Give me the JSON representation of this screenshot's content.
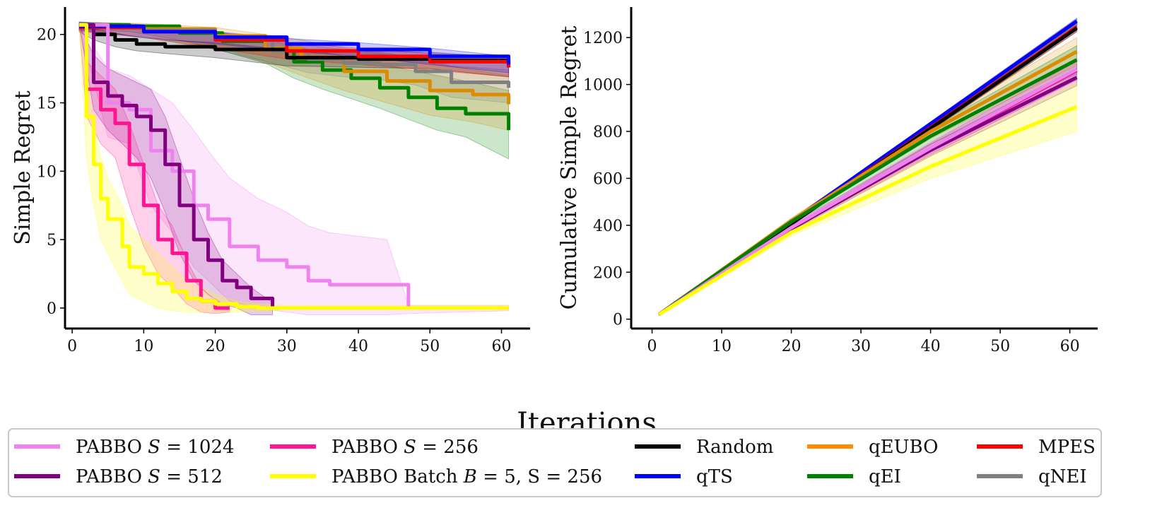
{
  "figure": {
    "shared_xlabel": "Iterations"
  },
  "chart_data": [
    {
      "type": "line",
      "id": "simple-regret",
      "title": "",
      "xlabel": "",
      "ylabel": "Simple Regret",
      "xlim": [
        -1,
        64
      ],
      "ylim": [
        -1.5,
        22
      ],
      "xticks": [
        0,
        10,
        20,
        30,
        40,
        50,
        60
      ],
      "yticks": [
        0,
        5,
        10,
        15,
        20
      ],
      "grid": false,
      "series": [
        {
          "name": "qEI",
          "color": "#008000",
          "x": [
            1,
            8,
            15,
            21,
            27,
            31,
            35,
            39,
            43,
            47,
            51,
            55,
            61
          ],
          "y": [
            20.7,
            20.6,
            20.1,
            19.5,
            18.9,
            18.0,
            17.4,
            16.8,
            16.1,
            15.4,
            14.6,
            14.2,
            13.0
          ],
          "band_hi": [
            20.9,
            20.8,
            20.5,
            20.1,
            19.7,
            19.1,
            18.7,
            18.3,
            17.9,
            17.4,
            17.0,
            16.6,
            15.9
          ],
          "band_lo": [
            20.4,
            20.2,
            19.6,
            18.8,
            17.9,
            16.8,
            16.0,
            15.3,
            14.6,
            13.8,
            13.0,
            12.5,
            10.9
          ]
        },
        {
          "name": "qEUBO",
          "color": "#DB8C00",
          "x": [
            1,
            10,
            20,
            27,
            32,
            38,
            44,
            50,
            56,
            61
          ],
          "y": [
            20.6,
            20.4,
            19.9,
            19.0,
            18.3,
            17.3,
            16.6,
            15.9,
            15.6,
            14.9
          ],
          "band_hi": [
            20.9,
            20.8,
            20.5,
            20.0,
            19.6,
            19.0,
            18.5,
            17.9,
            17.4,
            17.0
          ],
          "band_lo": [
            20.3,
            19.9,
            19.1,
            18.0,
            17.0,
            15.9,
            15.0,
            14.1,
            13.6,
            13.0
          ]
        },
        {
          "name": "qNEI",
          "color": "#808080",
          "x": [
            1,
            10,
            20,
            28,
            33,
            38,
            43,
            48,
            53,
            61
          ],
          "y": [
            20.6,
            20.3,
            19.6,
            18.8,
            18.2,
            17.9,
            17.8,
            17.3,
            16.5,
            16.1
          ],
          "band_hi": [
            20.9,
            20.7,
            20.2,
            19.6,
            19.2,
            18.9,
            18.7,
            18.3,
            17.7,
            17.4
          ],
          "band_lo": [
            20.3,
            19.8,
            18.9,
            17.9,
            17.2,
            16.9,
            16.7,
            16.3,
            15.4,
            15.0
          ]
        },
        {
          "name": "Random",
          "color": "#000000",
          "x": [
            1,
            3,
            6,
            9,
            13,
            20,
            30,
            40,
            50,
            61
          ],
          "y": [
            20.5,
            20.0,
            19.6,
            19.3,
            19.1,
            18.9,
            18.3,
            18.2,
            18.1,
            17.6
          ],
          "band_hi": [
            20.8,
            20.4,
            20.1,
            19.8,
            19.6,
            19.4,
            18.9,
            18.8,
            18.7,
            18.3
          ],
          "band_lo": [
            20.2,
            19.6,
            19.1,
            18.8,
            18.6,
            18.3,
            17.7,
            17.6,
            17.5,
            16.9
          ]
        },
        {
          "name": "MPES",
          "color": "#FF0000",
          "x": [
            1,
            10,
            20,
            30,
            40,
            50,
            61
          ],
          "y": [
            20.5,
            20.2,
            19.6,
            18.8,
            18.4,
            18.0,
            17.6
          ],
          "band_hi": [
            20.8,
            20.6,
            20.1,
            19.4,
            19.0,
            18.6,
            18.3
          ],
          "band_lo": [
            20.2,
            19.8,
            19.0,
            18.2,
            17.8,
            17.4,
            16.9
          ]
        },
        {
          "name": "qTS",
          "color": "#0000FF",
          "x": [
            1,
            10,
            20,
            30,
            40,
            50,
            61
          ],
          "y": [
            20.6,
            20.2,
            19.8,
            19.3,
            18.9,
            18.4,
            17.8
          ],
          "band_hi": [
            20.9,
            20.6,
            20.2,
            19.7,
            19.4,
            19.0,
            18.4
          ],
          "band_lo": [
            20.3,
            19.8,
            19.3,
            18.8,
            18.4,
            17.8,
            17.2
          ]
        },
        {
          "name": "PABBO S = 1024",
          "color": "#EE82EE",
          "x": [
            1,
            5,
            8,
            11,
            14,
            17,
            19,
            22,
            26,
            30,
            33,
            36,
            44,
            47,
            61
          ],
          "y": [
            20.7,
            15.0,
            14.5,
            11.5,
            10.0,
            7.5,
            6.5,
            4.5,
            3.5,
            3.0,
            2.0,
            1.7,
            1.7,
            0.0,
            0.0
          ],
          "band_hi": [
            20.7,
            17.5,
            17.0,
            16.0,
            15.0,
            13.0,
            11.5,
            9.5,
            8.0,
            7.0,
            6.0,
            5.5,
            5.0,
            0.2,
            0.2
          ],
          "band_lo": [
            20.7,
            12.5,
            12.0,
            7.5,
            5.5,
            3.0,
            2.0,
            0.5,
            0.0,
            -0.3,
            -0.5,
            -0.5,
            -0.5,
            -0.4,
            -0.2
          ]
        },
        {
          "name": "PABBO S = 512",
          "color": "#800080",
          "x": [
            1,
            3,
            5,
            7,
            9,
            11,
            13,
            15,
            17,
            19,
            21,
            23,
            25,
            28
          ],
          "y": [
            20.7,
            16.5,
            15.5,
            14.8,
            14.0,
            13.0,
            10.5,
            7.5,
            5.0,
            3.5,
            2.0,
            1.5,
            0.7,
            0.0
          ],
          "band_hi": [
            20.7,
            18.5,
            17.5,
            17.0,
            16.5,
            16.0,
            14.0,
            11.0,
            8.0,
            5.5,
            3.5,
            2.5,
            1.5,
            0.4
          ],
          "band_lo": [
            20.7,
            14.5,
            13.0,
            12.0,
            11.0,
            9.5,
            7.0,
            4.0,
            2.0,
            1.0,
            0.3,
            0.0,
            -0.5,
            -0.5
          ]
        },
        {
          "name": "PABBO S = 256",
          "color": "#FF1493",
          "x": [
            1,
            2,
            4,
            6,
            8,
            10,
            12,
            14,
            16,
            18,
            20,
            22
          ],
          "y": [
            20.7,
            16.0,
            14.5,
            13.5,
            10.5,
            7.5,
            5.0,
            4.0,
            2.0,
            0.5,
            0.0,
            0.0
          ],
          "band_hi": [
            20.7,
            18.0,
            17.0,
            16.0,
            13.5,
            10.5,
            7.5,
            6.0,
            3.5,
            1.5,
            0.5,
            0.3
          ],
          "band_lo": [
            20.7,
            14.0,
            12.0,
            11.0,
            7.5,
            4.5,
            2.5,
            1.5,
            0.3,
            -0.3,
            -0.4,
            -0.3
          ]
        },
        {
          "name": "PABBO Batch B = 5, S = 256",
          "color": "#FFFF00",
          "x": [
            1,
            2,
            3,
            4,
            5,
            7,
            8,
            10,
            12,
            14,
            16,
            18,
            20,
            23,
            26,
            30,
            40,
            50,
            61
          ],
          "y": [
            20.7,
            14.0,
            10.5,
            8.0,
            6.5,
            4.5,
            3.0,
            2.5,
            1.8,
            1.2,
            0.7,
            0.5,
            0.3,
            0.1,
            0.0,
            0.0,
            0.0,
            0.0,
            0.0
          ],
          "band_hi": [
            20.7,
            17.0,
            13.5,
            11.0,
            9.5,
            7.5,
            6.0,
            5.0,
            4.0,
            3.0,
            2.0,
            1.5,
            1.0,
            0.5,
            0.3,
            0.2,
            0.2,
            0.2,
            0.2
          ],
          "band_lo": [
            20.7,
            11.0,
            7.5,
            5.0,
            4.0,
            2.0,
            1.0,
            0.5,
            0.0,
            -0.2,
            -0.3,
            -0.3,
            -0.3,
            -0.3,
            -0.2,
            -0.1,
            -0.1,
            -0.1,
            -0.1
          ]
        }
      ]
    },
    {
      "type": "line",
      "id": "cumulative-simple-regret",
      "title": "",
      "xlabel": "",
      "ylabel": "Cumulative Simple Regret",
      "xlim": [
        -3,
        64
      ],
      "ylim": [
        -40,
        1330
      ],
      "xticks": [
        0,
        10,
        20,
        30,
        40,
        50,
        60
      ],
      "yticks": [
        0,
        200,
        400,
        600,
        800,
        1000,
        1200
      ],
      "grid": false,
      "series": [
        {
          "name": "qNEI",
          "color": "#808080",
          "x": [
            1,
            61
          ],
          "y": [
            20,
            1262
          ],
          "band_hi": [
            22,
            1280
          ],
          "band_lo": [
            18,
            1245
          ]
        },
        {
          "name": "qTS",
          "color": "#0000FF",
          "x": [
            1,
            61
          ],
          "y": [
            20,
            1270
          ],
          "band_hi": [
            22,
            1282
          ],
          "band_lo": [
            18,
            1258
          ]
        },
        {
          "name": "MPES",
          "color": "#FF0000",
          "x": [
            1,
            61
          ],
          "y": [
            20,
            1245
          ],
          "band_hi": [
            22,
            1262
          ],
          "band_lo": [
            18,
            1225
          ]
        },
        {
          "name": "Random",
          "color": "#000000",
          "x": [
            1,
            61
          ],
          "y": [
            20,
            1240
          ],
          "band_hi": [
            22,
            1255
          ],
          "band_lo": [
            18,
            1225
          ]
        },
        {
          "name": "qEUBO",
          "color": "#DB8C00",
          "x": [
            1,
            20,
            40,
            61
          ],
          "y": [
            20,
            420,
            800,
            1140
          ],
          "band_hi": [
            22,
            430,
            830,
            1200
          ],
          "band_lo": [
            18,
            410,
            770,
            1080
          ]
        },
        {
          "name": "qEI",
          "color": "#008000",
          "x": [
            1,
            20,
            40,
            61
          ],
          "y": [
            20,
            415,
            780,
            1105
          ],
          "band_hi": [
            22,
            425,
            815,
            1165
          ],
          "band_lo": [
            18,
            405,
            745,
            1045
          ]
        },
        {
          "name": "PABBO S = 256",
          "color": "#FF1493",
          "x": [
            1,
            20,
            40,
            61
          ],
          "y": [
            20,
            390,
            725,
            1060
          ],
          "band_hi": [
            22,
            400,
            750,
            1100
          ],
          "band_lo": [
            18,
            380,
            700,
            1020
          ]
        },
        {
          "name": "PABBO S = 512",
          "color": "#800080",
          "x": [
            1,
            20,
            40,
            61
          ],
          "y": [
            20,
            385,
            720,
            1030
          ],
          "band_hi": [
            22,
            395,
            745,
            1070
          ],
          "band_lo": [
            18,
            375,
            695,
            995
          ]
        },
        {
          "name": "PABBO S = 1024",
          "color": "#EE82EE",
          "x": [
            1,
            20,
            40,
            61
          ],
          "y": [
            20,
            390,
            730,
            1065
          ],
          "band_hi": [
            22,
            400,
            755,
            1110
          ],
          "band_lo": [
            18,
            380,
            705,
            1020
          ]
        },
        {
          "name": "PABBO Batch B = 5, S = 256",
          "color": "#FFFF00",
          "x": [
            1,
            20,
            40,
            61
          ],
          "y": [
            20,
            370,
            650,
            905
          ],
          "band_hi": [
            22,
            385,
            700,
            1010
          ],
          "band_lo": [
            18,
            355,
            600,
            800
          ]
        }
      ]
    }
  ],
  "legend": {
    "placement": "bottom",
    "entries": [
      {
        "pre": "PABBO ",
        "sym": "S",
        "post": " = 1024",
        "color": "#EE82EE"
      },
      {
        "pre": "PABBO ",
        "sym": "S",
        "post": " = 256",
        "color": "#FF1493"
      },
      {
        "pre": "Random",
        "sym": "",
        "post": "",
        "color": "#000000"
      },
      {
        "pre": "qEUBO",
        "sym": "",
        "post": "",
        "color": "#FF8C00"
      },
      {
        "pre": "MPES",
        "sym": "",
        "post": "",
        "color": "#FF0000"
      },
      {
        "pre": "PABBO ",
        "sym": "S",
        "post": " = 512",
        "color": "#800080"
      },
      {
        "pre": "PABBO Batch ",
        "sym": "B",
        "post": " = 5, S = 256",
        "color": "#FFFF00"
      },
      {
        "pre": "qTS",
        "sym": "",
        "post": "",
        "color": "#0000FF"
      },
      {
        "pre": "qEI",
        "sym": "",
        "post": "",
        "color": "#008000"
      },
      {
        "pre": "qNEI",
        "sym": "",
        "post": "",
        "color": "#808080"
      }
    ]
  }
}
